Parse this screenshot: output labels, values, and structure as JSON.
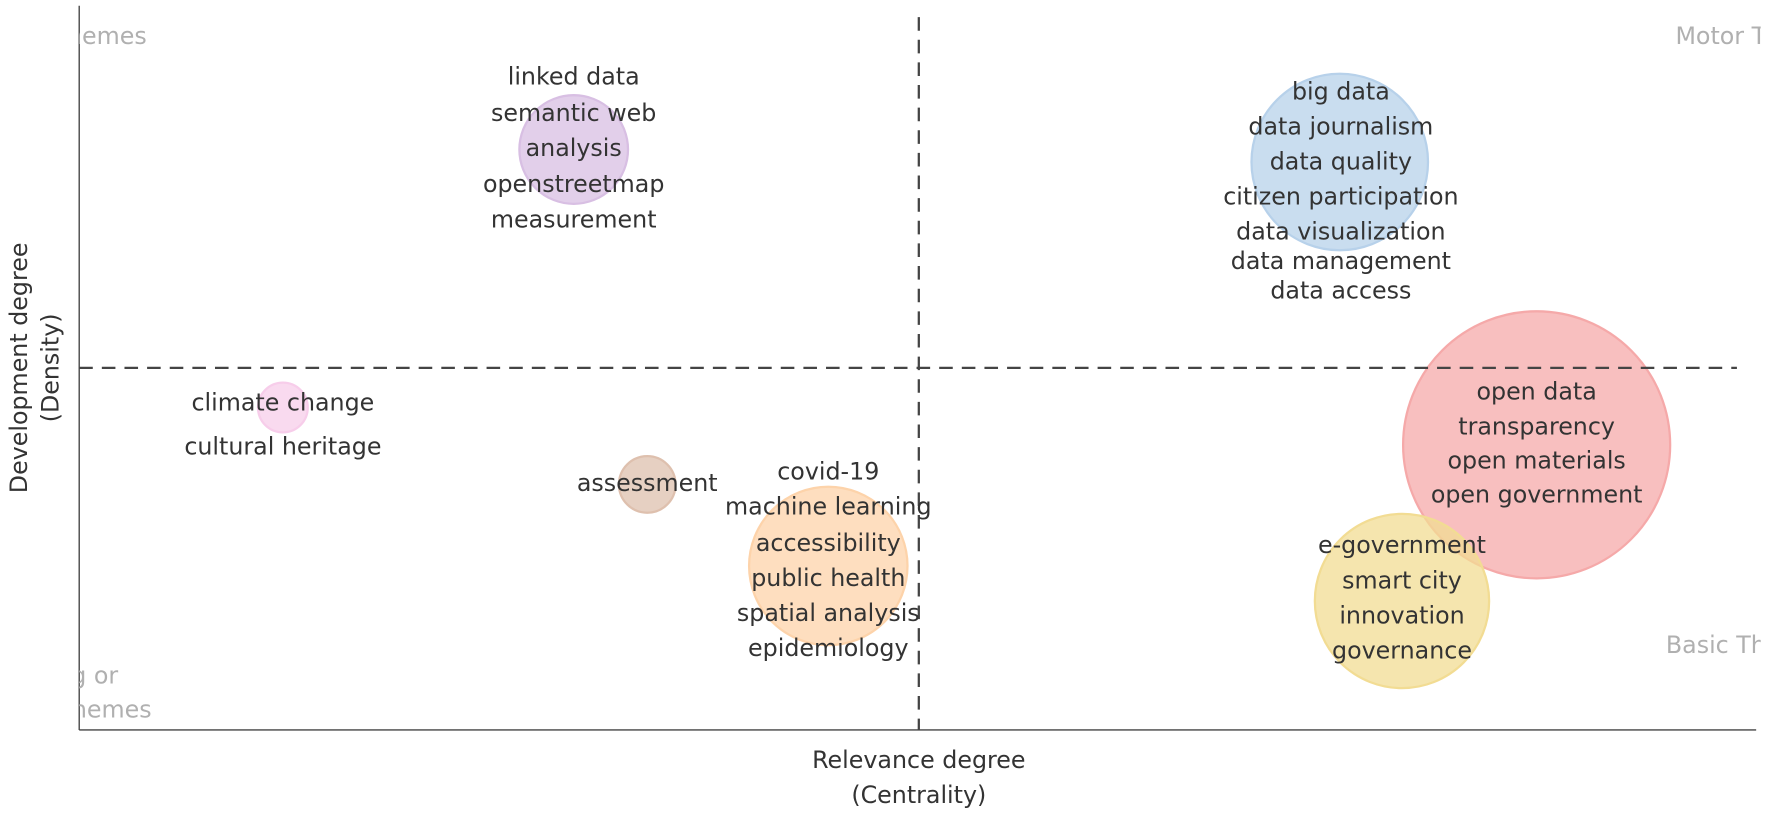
{
  "x_axis_title": [
    "Relevance degree",
    "(Centrality)"
  ],
  "y_axis_title": [
    "Development degree",
    "(Density)"
  ],
  "quadrants": [
    {
      "lines": [
        "Niche Themes"
      ]
    },
    {
      "lines": [
        "Motor Themes"
      ]
    },
    {
      "lines": [
        "Emerging or",
        "Declining Themes"
      ]
    },
    {
      "lines": [
        "Basic Themes"
      ]
    }
  ],
  "clusters": [
    {
      "color": "#d8bfe3",
      "terms": [
        "linked data",
        "semantic web",
        "analysis",
        "openstreetmap",
        "measurement"
      ]
    },
    {
      "color": "#b7d1ea",
      "terms": [
        "big data",
        "data journalism",
        "data quality",
        "citizen participation",
        "data visualization",
        "data management",
        "data access"
      ]
    },
    {
      "color": "#f5a9a9",
      "terms": [
        "open data",
        "transparency",
        "open materials",
        "open government"
      ]
    },
    {
      "color": "#f2dc93",
      "terms": [
        "e-government",
        "smart city",
        "innovation",
        "governance"
      ]
    },
    {
      "color": "#fdd3aa",
      "terms": [
        "covid-19",
        "machine learning",
        "accessibility",
        "public health",
        "spatial analysis",
        "epidemiology"
      ]
    },
    {
      "color": "#dec0ae",
      "terms": [
        "assessment"
      ]
    },
    {
      "color": "#f7cdea",
      "terms": [
        "climate change",
        "cultural heritage"
      ]
    }
  ]
}
